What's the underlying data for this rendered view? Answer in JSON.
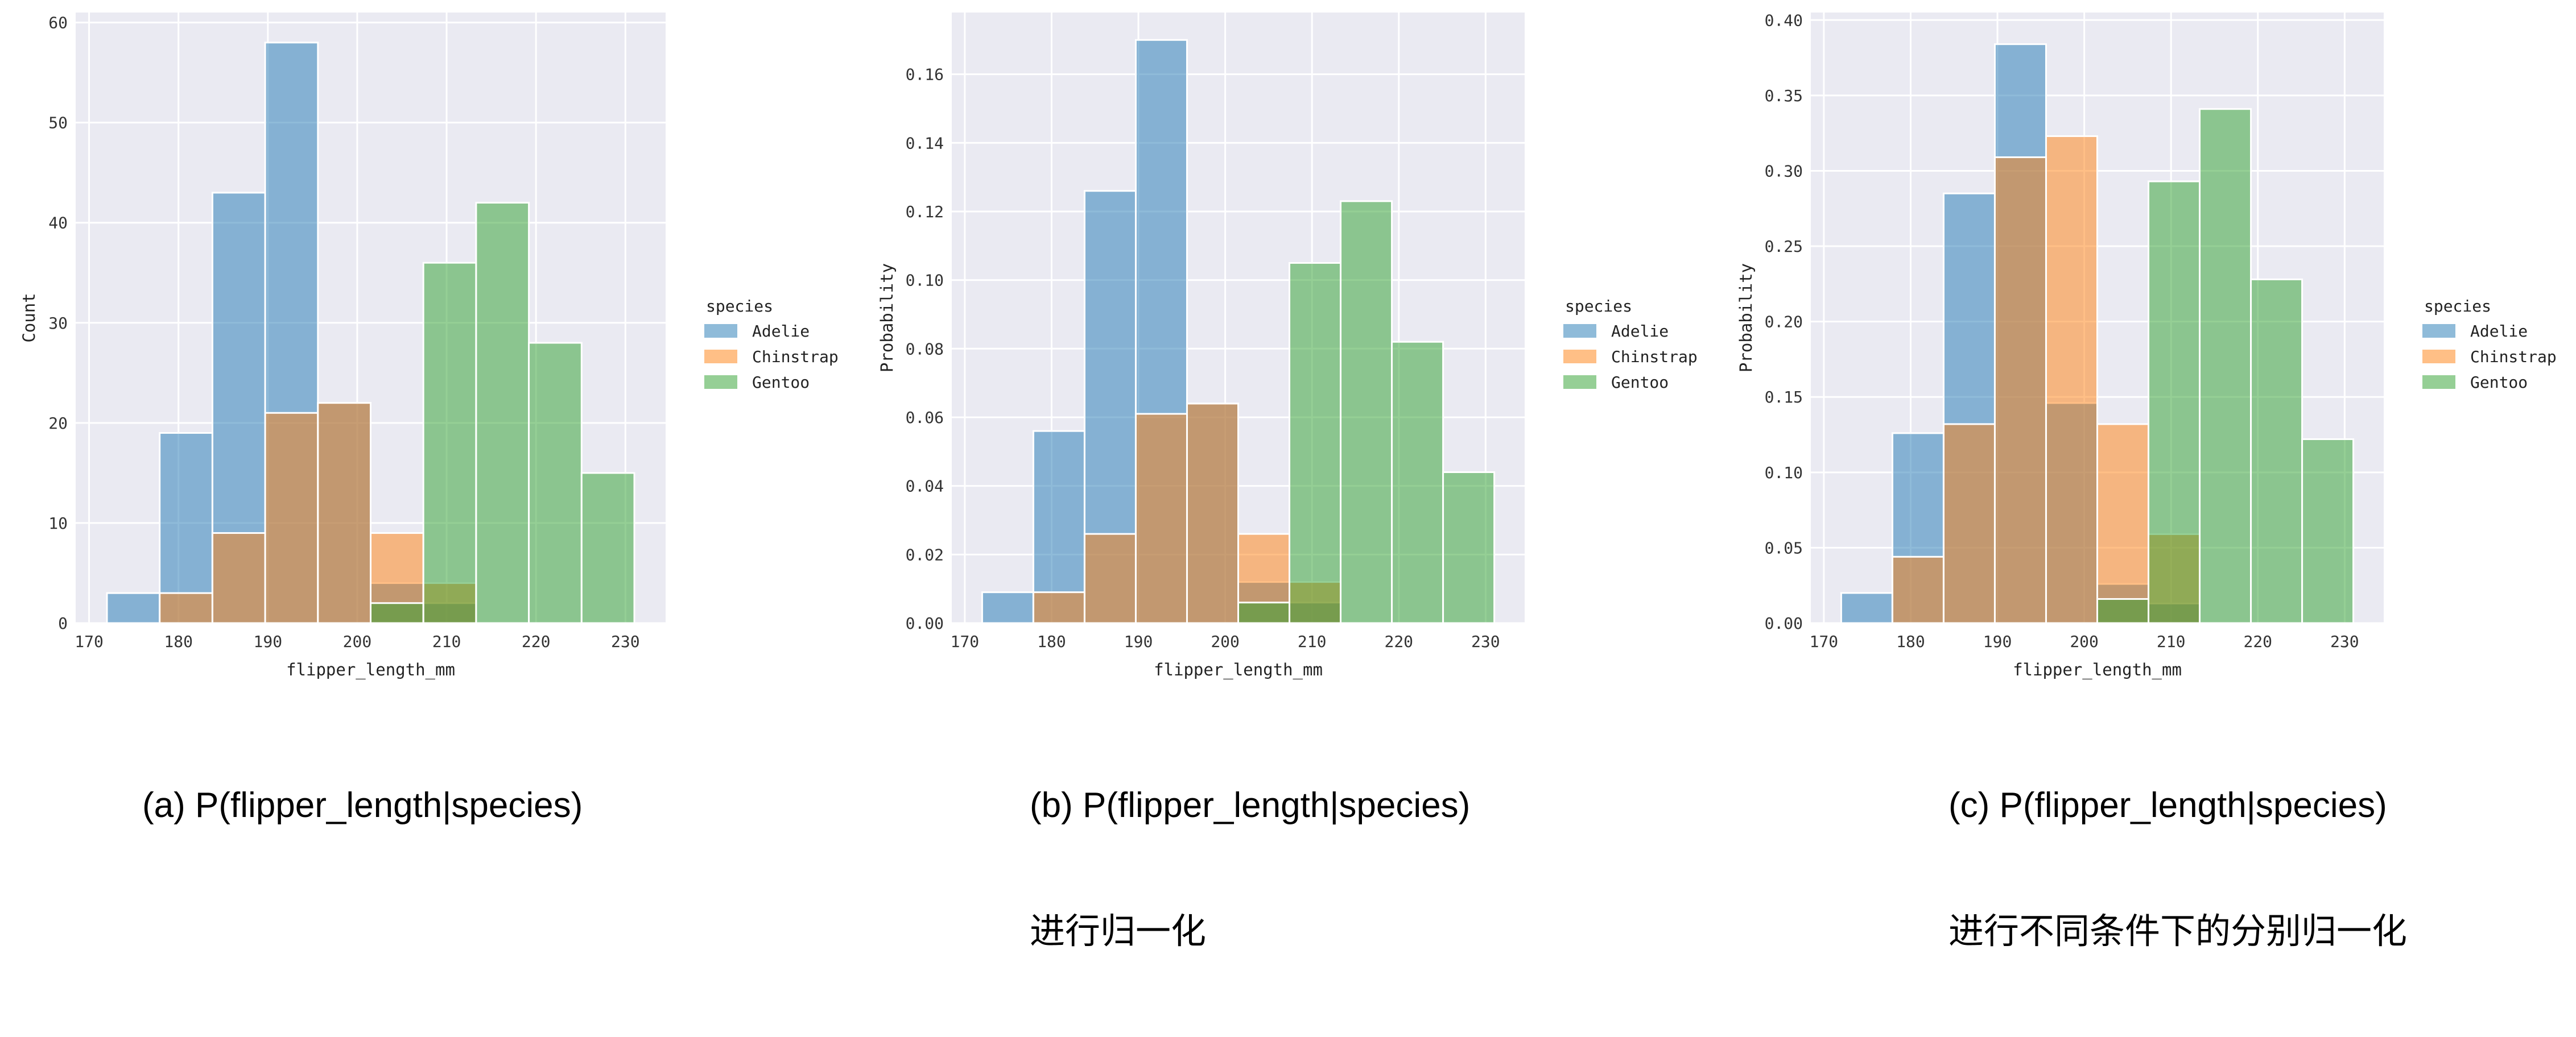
{
  "legend_title": "species",
  "colors": {
    "Adelie": "#1f77b4",
    "Chinstrap": "#ff7f0e",
    "Gentoo": "#2ca02c"
  },
  "plot_style": {
    "background": "#eaeaf2",
    "grid": "#ffffff",
    "bar_alpha": 0.5
  },
  "bins": [
    172,
    177.9,
    183.8,
    189.7,
    195.6,
    201.5,
    207.4,
    213.3,
    219.2,
    225.1,
    231
  ],
  "chart_data": [
    {
      "type": "bar",
      "title": "",
      "xlabel": "flipper_length_mm",
      "ylabel": "Count",
      "xlim": [
        168.5,
        234.5
      ],
      "ylim": [
        0,
        61
      ],
      "xticks": [
        170,
        180,
        190,
        200,
        210,
        220,
        230
      ],
      "yticks": [
        0,
        10,
        20,
        30,
        40,
        50,
        60
      ],
      "ytick_labels": [
        "0",
        "10",
        "20",
        "30",
        "40",
        "50",
        "60"
      ],
      "grid": true,
      "legend_position": "center-right-outside",
      "series": [
        {
          "name": "Adelie",
          "values": [
            3,
            19,
            43,
            58,
            22,
            4,
            2,
            0,
            0,
            0
          ]
        },
        {
          "name": "Chinstrap",
          "values": [
            0,
            3,
            9,
            21,
            22,
            9,
            4,
            0,
            0,
            0
          ]
        },
        {
          "name": "Gentoo",
          "values": [
            0,
            0,
            0,
            0,
            0,
            2,
            36,
            42,
            28,
            15
          ]
        }
      ],
      "caption_lines": [
        "(a) P(flipper_length|species)"
      ]
    },
    {
      "type": "bar",
      "title": "",
      "xlabel": "flipper_length_mm",
      "ylabel": "Probability",
      "xlim": [
        168.5,
        234.5
      ],
      "ylim": [
        0,
        0.178
      ],
      "xticks": [
        170,
        180,
        190,
        200,
        210,
        220,
        230
      ],
      "yticks": [
        0,
        0.02,
        0.04,
        0.06,
        0.08,
        0.1,
        0.12,
        0.14,
        0.16
      ],
      "ytick_labels": [
        "0.00",
        "0.02",
        "0.04",
        "0.06",
        "0.08",
        "0.10",
        "0.12",
        "0.14",
        "0.16"
      ],
      "grid": true,
      "legend_position": "center-right-outside",
      "series": [
        {
          "name": "Adelie",
          "values": [
            0.009,
            0.056,
            0.126,
            0.17,
            0.064,
            0.012,
            0.006,
            0,
            0,
            0
          ]
        },
        {
          "name": "Chinstrap",
          "values": [
            0,
            0.009,
            0.026,
            0.061,
            0.064,
            0.026,
            0.012,
            0,
            0,
            0
          ]
        },
        {
          "name": "Gentoo",
          "values": [
            0,
            0,
            0,
            0,
            0,
            0.006,
            0.105,
            0.123,
            0.082,
            0.044
          ]
        }
      ],
      "caption_lines": [
        "(b) P(flipper_length|species)",
        "进行归一化"
      ]
    },
    {
      "type": "bar",
      "title": "",
      "xlabel": "flipper_length_mm",
      "ylabel": "Probability",
      "xlim": [
        168.5,
        234.5
      ],
      "ylim": [
        0,
        0.405
      ],
      "xticks": [
        170,
        180,
        190,
        200,
        210,
        220,
        230
      ],
      "yticks": [
        0,
        0.05,
        0.1,
        0.15,
        0.2,
        0.25,
        0.3,
        0.35,
        0.4
      ],
      "ytick_labels": [
        "0.00",
        "0.05",
        "0.10",
        "0.15",
        "0.20",
        "0.25",
        "0.30",
        "0.35",
        "0.40"
      ],
      "grid": true,
      "legend_position": "center-right-outside",
      "series": [
        {
          "name": "Adelie",
          "values": [
            0.02,
            0.126,
            0.285,
            0.384,
            0.146,
            0.026,
            0.013,
            0,
            0,
            0
          ]
        },
        {
          "name": "Chinstrap",
          "values": [
            0,
            0.044,
            0.132,
            0.309,
            0.323,
            0.132,
            0.059,
            0,
            0,
            0
          ]
        },
        {
          "name": "Gentoo",
          "values": [
            0,
            0,
            0,
            0,
            0,
            0.016,
            0.293,
            0.341,
            0.228,
            0.122
          ]
        }
      ],
      "caption_lines": [
        "(c) P(flipper_length|species)",
        "进行不同条件下的分别归一化"
      ]
    }
  ]
}
